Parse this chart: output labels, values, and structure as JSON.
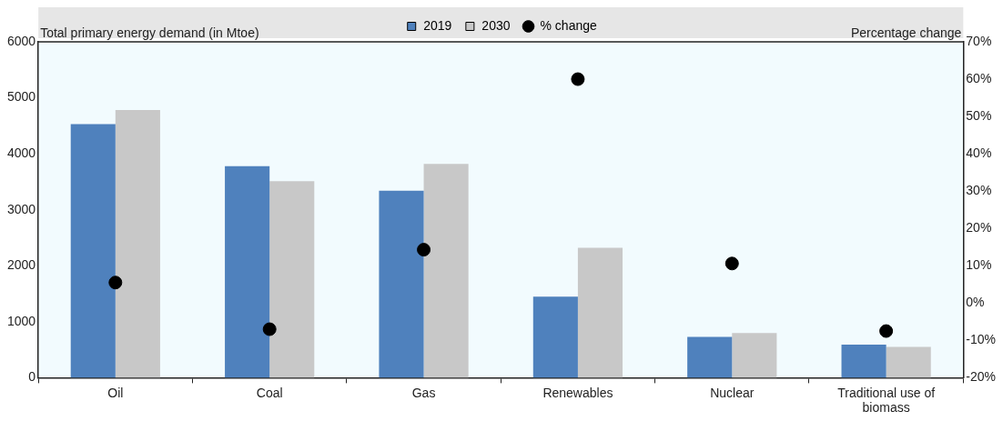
{
  "chart_data": {
    "type": "bar",
    "categories": [
      "Oil",
      "Coal",
      "Gas",
      "Renewables",
      "Nuclear",
      "Traditional use of biomass"
    ],
    "series": [
      {
        "name": "2019",
        "color": "#4f81bd",
        "values": [
          4530,
          3780,
          3340,
          1450,
          730,
          590
        ]
      },
      {
        "name": "2030",
        "color": "#c8c8c8",
        "values": [
          4780,
          3510,
          3820,
          2320,
          800,
          550
        ]
      },
      {
        "name": "% change",
        "type": "scatter",
        "axis": "y2",
        "color": "#000000",
        "x": [
          "Oil",
          "Coal",
          "Gas",
          "Renewables",
          "Nuclear",
          "Traditional use of biomass"
        ],
        "values": [
          5.5,
          -7,
          14.3,
          60,
          10.6,
          -7.5
        ]
      }
    ],
    "ylabel": "Total primary energy demand (in Mtoe)",
    "y2label": "Percentage change",
    "ylim": [
      0,
      6000
    ],
    "yticks": [
      0,
      1000,
      2000,
      3000,
      4000,
      5000,
      6000
    ],
    "y2lim": [
      -20,
      70
    ],
    "y2ticks": [
      {
        "value": -20,
        "label": "-20%"
      },
      {
        "value": -10,
        "label": "-10%"
      },
      {
        "value": 0,
        "label": "0%"
      },
      {
        "value": 10,
        "label": "10%"
      },
      {
        "value": 20,
        "label": "20%"
      },
      {
        "value": 30,
        "label": "30%"
      },
      {
        "value": 40,
        "label": "40%"
      },
      {
        "value": 50,
        "label": "50%"
      },
      {
        "value": 60,
        "label": "60%"
      },
      {
        "value": 70,
        "label": "70%"
      }
    ],
    "grid": false,
    "legend": "top",
    "marker": "circle"
  }
}
